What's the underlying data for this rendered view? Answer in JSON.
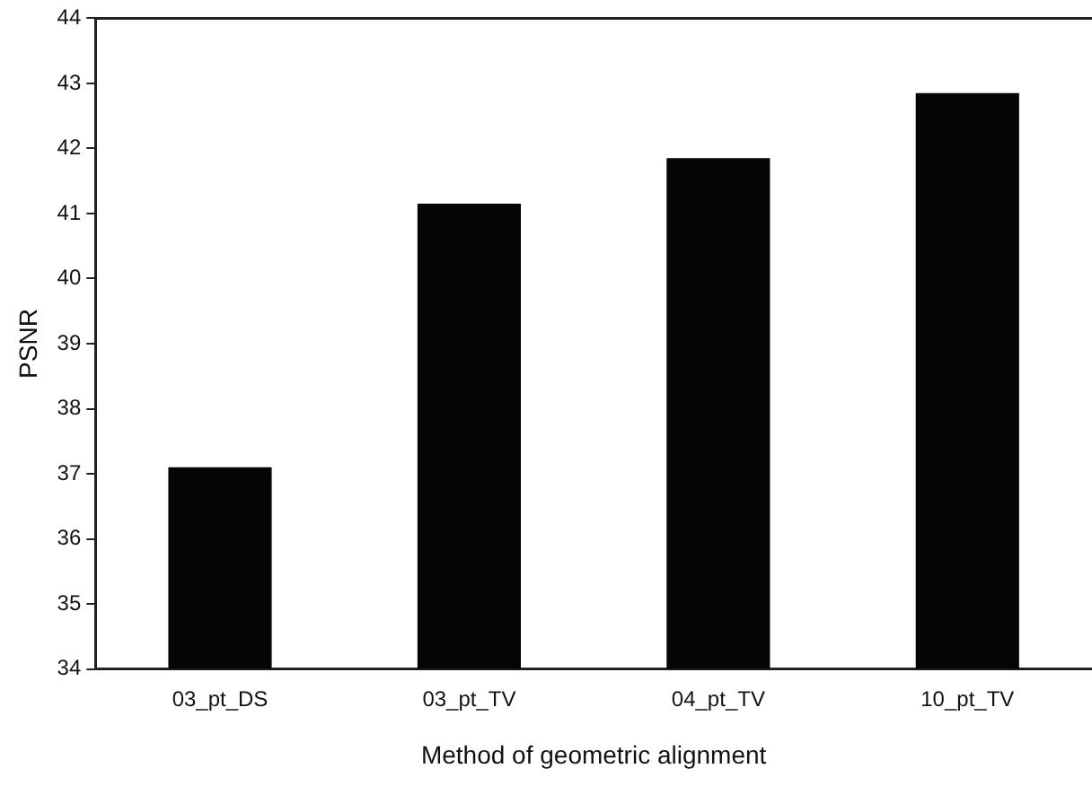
{
  "chart_data": {
    "type": "bar",
    "xlabel": "Method of geometric alignment",
    "ylabel": "PSNR",
    "categories": [
      "03_pt_DS",
      "03_pt_TV",
      "04_pt_TV",
      "10_pt_TV"
    ],
    "values": [
      37.1,
      41.15,
      41.85,
      42.85
    ],
    "color": "#050505",
    "ylim": [
      34,
      44
    ],
    "yticks": [
      34,
      35,
      36,
      37,
      38,
      39,
      40,
      41,
      42,
      43,
      44
    ],
    "grid": false,
    "legend": false
  }
}
